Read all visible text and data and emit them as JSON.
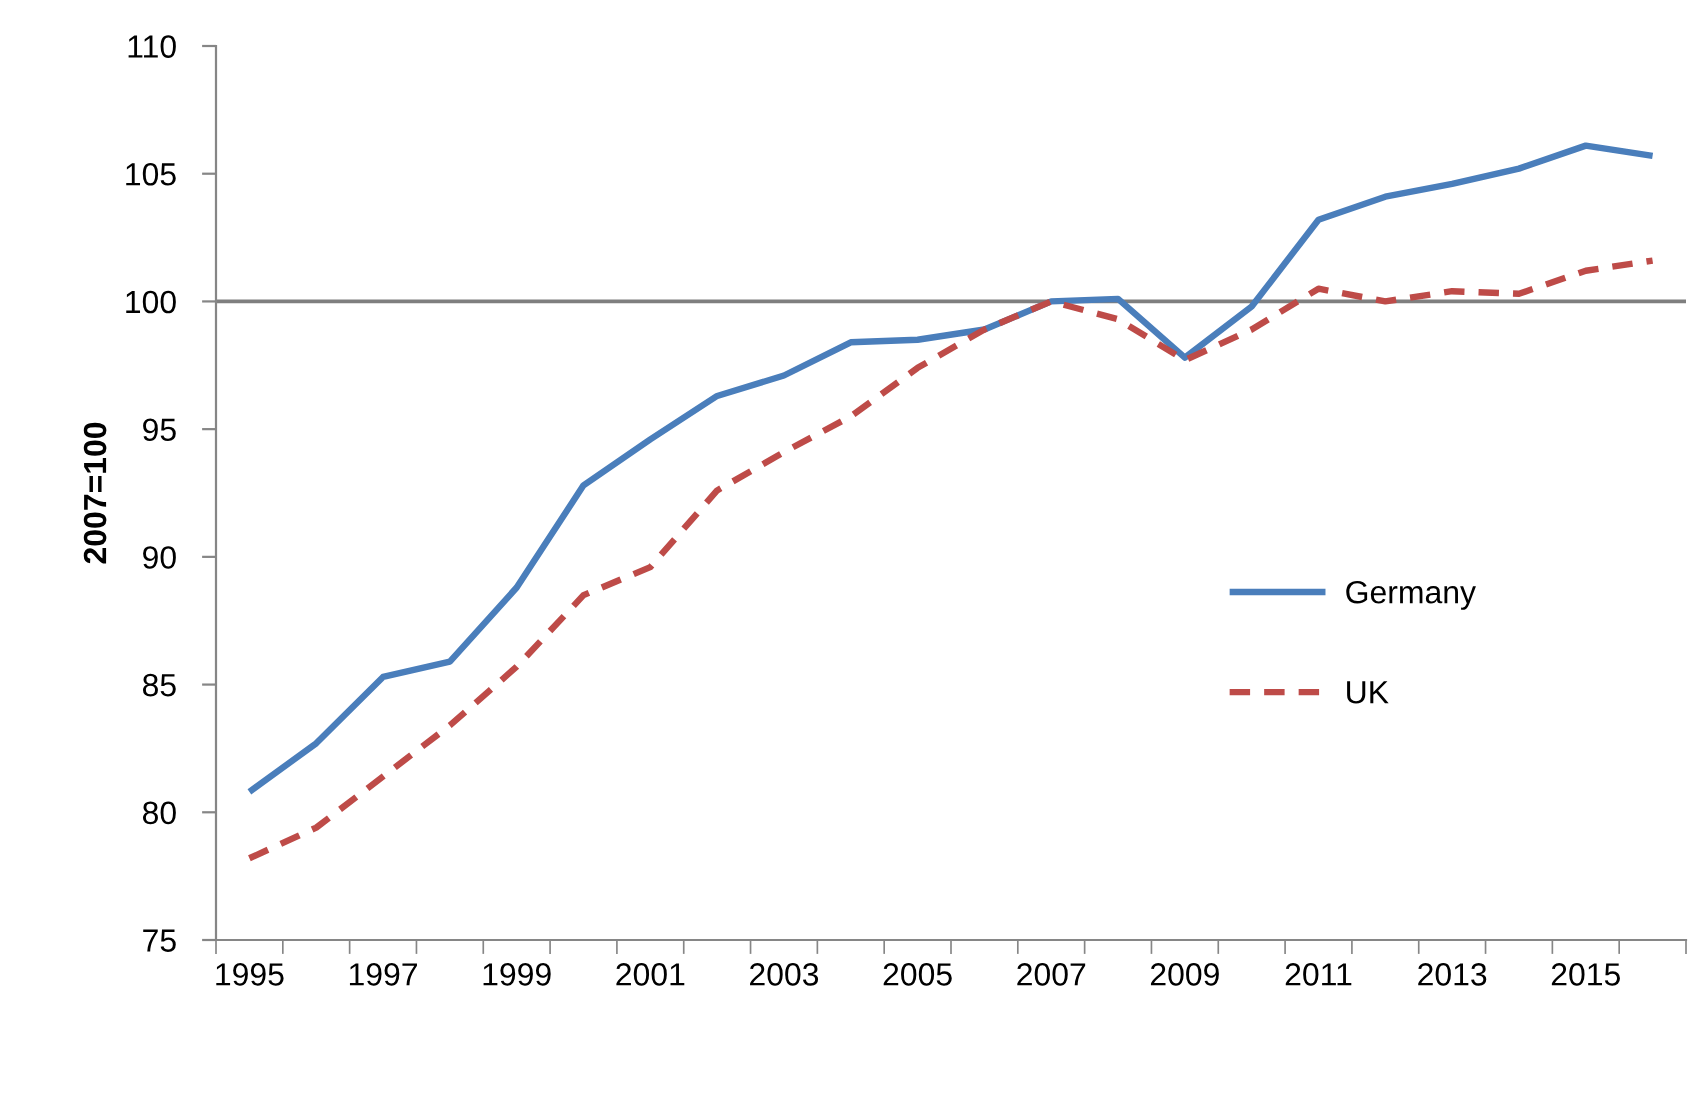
{
  "chart_data": {
    "type": "line",
    "ylabel": "2007=100",
    "categories": [
      "1995",
      null,
      "1997",
      null,
      "1999",
      null,
      "2001",
      null,
      "2003",
      null,
      "2005",
      null,
      "2007",
      null,
      "2009",
      null,
      "2011",
      null,
      "2013",
      null,
      "2015",
      null
    ],
    "series": [
      {
        "name": "Germany",
        "color": "#4a7ebb",
        "line_style": "solid",
        "values": [
          80.8,
          82.7,
          85.3,
          85.9,
          88.8,
          92.8,
          94.6,
          96.3,
          97.1,
          98.4,
          98.5,
          98.9,
          100.0,
          100.1,
          97.8,
          99.8,
          103.2,
          104.1,
          104.6,
          105.2,
          106.1,
          105.7
        ]
      },
      {
        "name": "UK",
        "color": "#be4b48",
        "line_style": "dashed",
        "values": [
          78.2,
          79.4,
          81.4,
          83.4,
          85.7,
          88.5,
          89.6,
          92.6,
          94.1,
          95.5,
          97.4,
          98.9,
          100.0,
          99.3,
          97.7,
          98.9,
          100.5,
          100.0,
          100.4,
          100.3,
          101.2,
          101.6
        ]
      }
    ],
    "ylim": [
      75,
      110
    ],
    "yticks": [
      75,
      80,
      85,
      90,
      95,
      100,
      105,
      110
    ],
    "ref_lines": [
      {
        "axis": "y",
        "value": 100,
        "color": "#7f7f7f"
      }
    ],
    "legend": "right"
  }
}
